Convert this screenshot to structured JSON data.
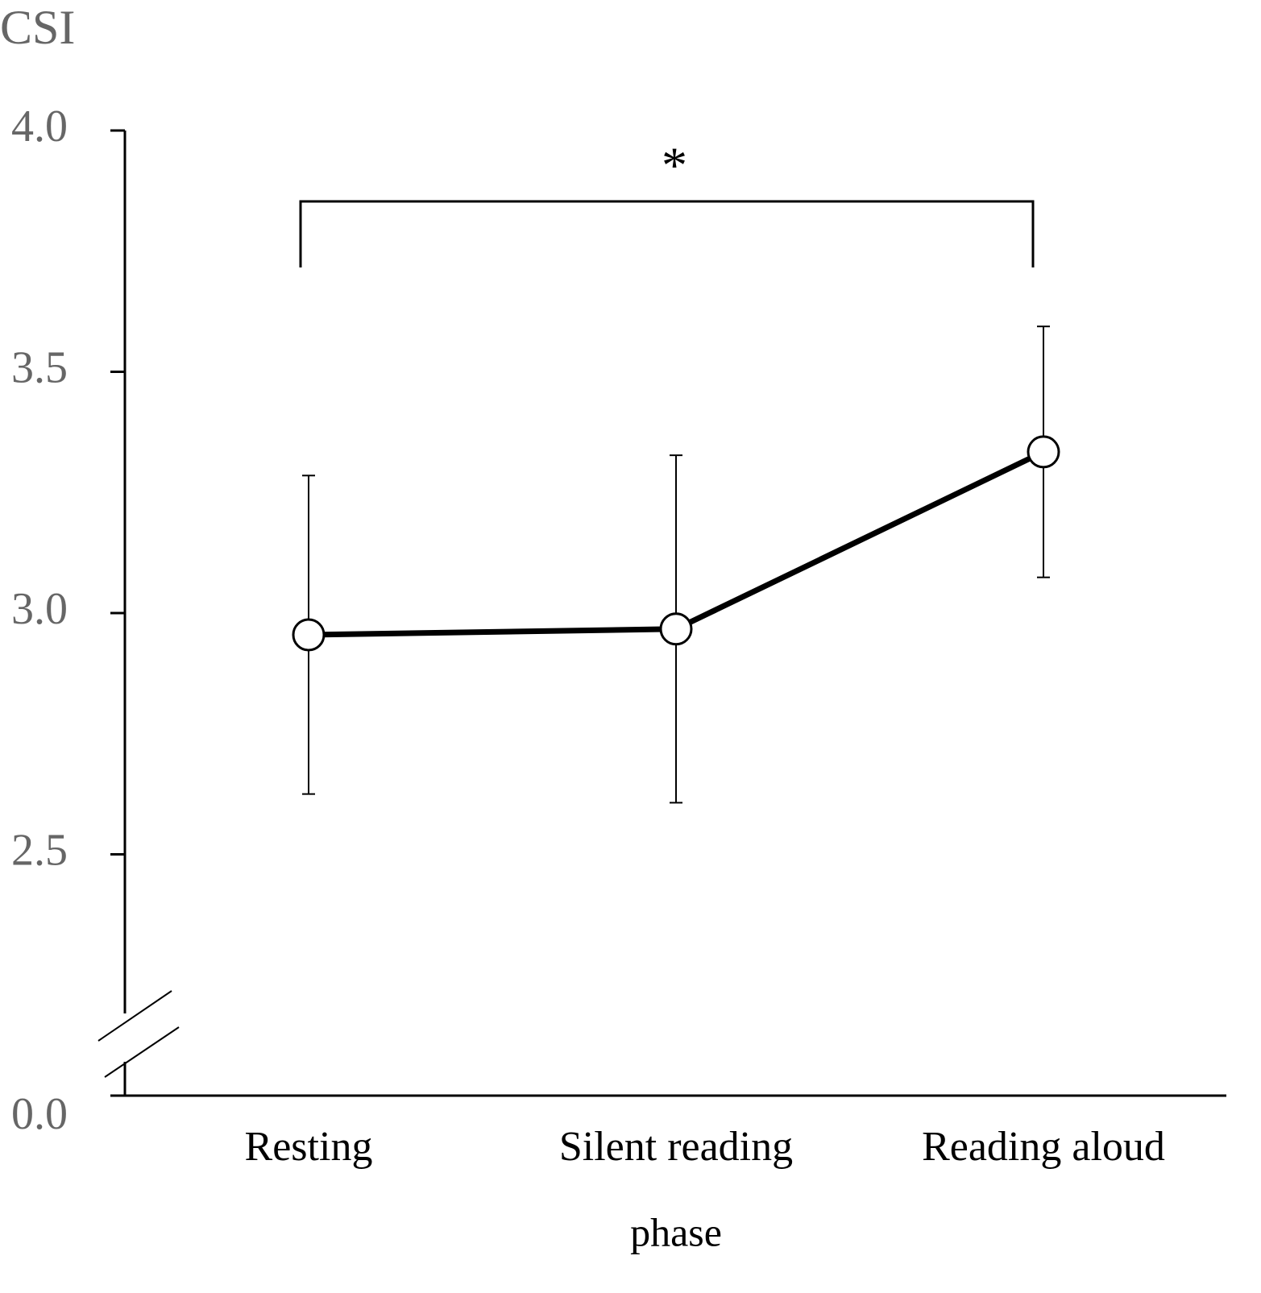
{
  "chart_data": {
    "type": "line",
    "y_label": "CSI",
    "x_label": "phase",
    "annotation": "*",
    "categories": [
      "Resting",
      "Silent reading",
      "Reading aloud"
    ],
    "values": [
      2.955,
      2.967,
      3.334
    ],
    "errors": [
      0.33,
      0.36,
      0.26
    ],
    "color": "#000000",
    "ylim": [
      0,
      4
    ],
    "axis_break": [
      0,
      2
    ],
    "yticks": [
      {
        "value": 0,
        "label": "0.0"
      },
      2.5,
      {
        "value": 3,
        "label": "3.0"
      },
      3.5,
      {
        "value": 4,
        "label": "4.0"
      }
    ]
  }
}
